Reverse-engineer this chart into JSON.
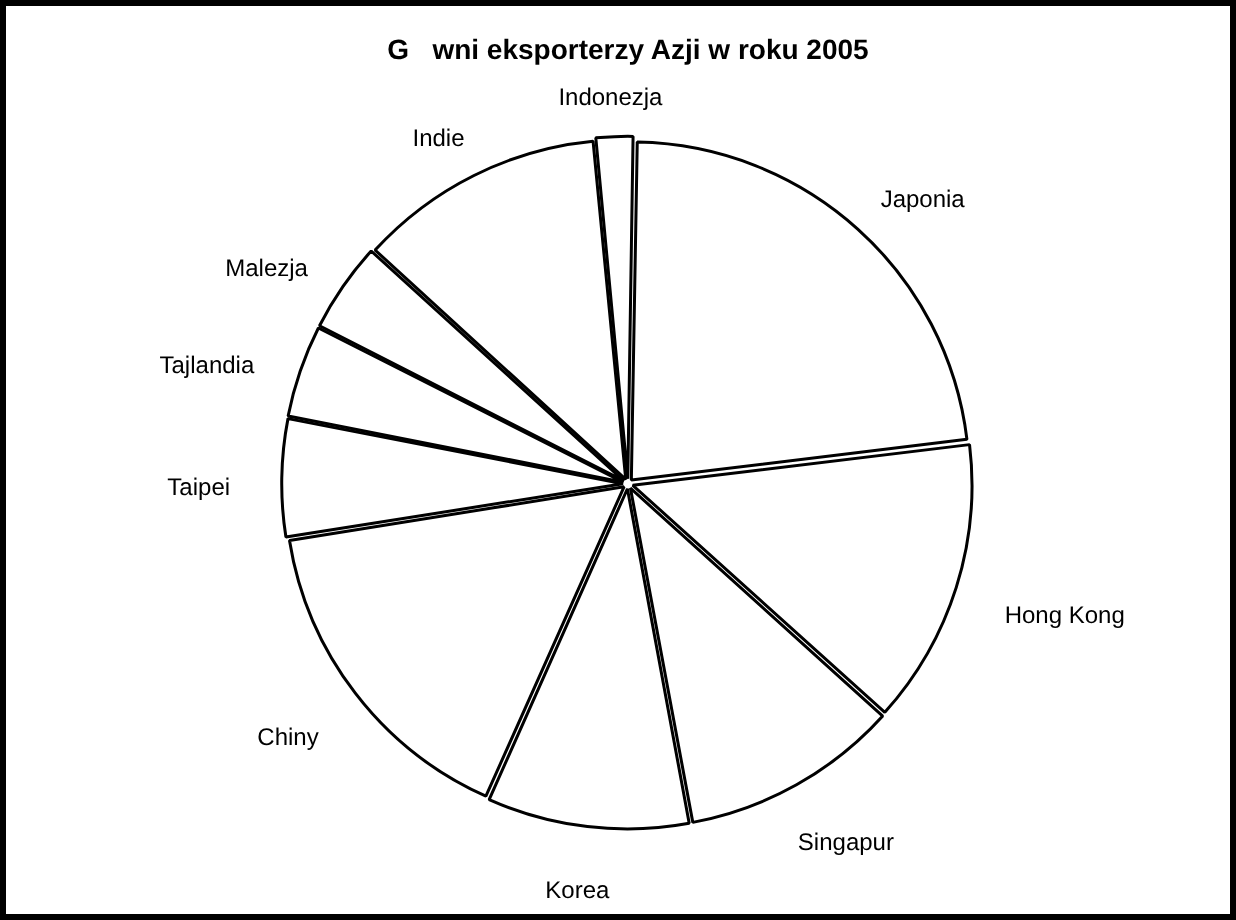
{
  "chart_data": {
    "type": "pie",
    "title": "G   wni eksporterzy Azji w roku 2005",
    "categories": [
      "Japonia",
      "Hong Kong",
      "Singapur",
      "Korea",
      "Chiny",
      "Taipei",
      "Tajlandia",
      "Malezja",
      "Indie",
      "Indonezja"
    ],
    "values": [
      22.8,
      13.6,
      10.4,
      9.6,
      15.8,
      5.6,
      4.4,
      4.3,
      11.7,
      1.8
    ],
    "colors": [
      "#ffffff",
      "#ffffff",
      "#ffffff",
      "#ffffff",
      "#ffffff",
      "#ffffff",
      "#ffffff",
      "#ffffff",
      "#ffffff",
      "#ffffff"
    ],
    "legend": false
  }
}
